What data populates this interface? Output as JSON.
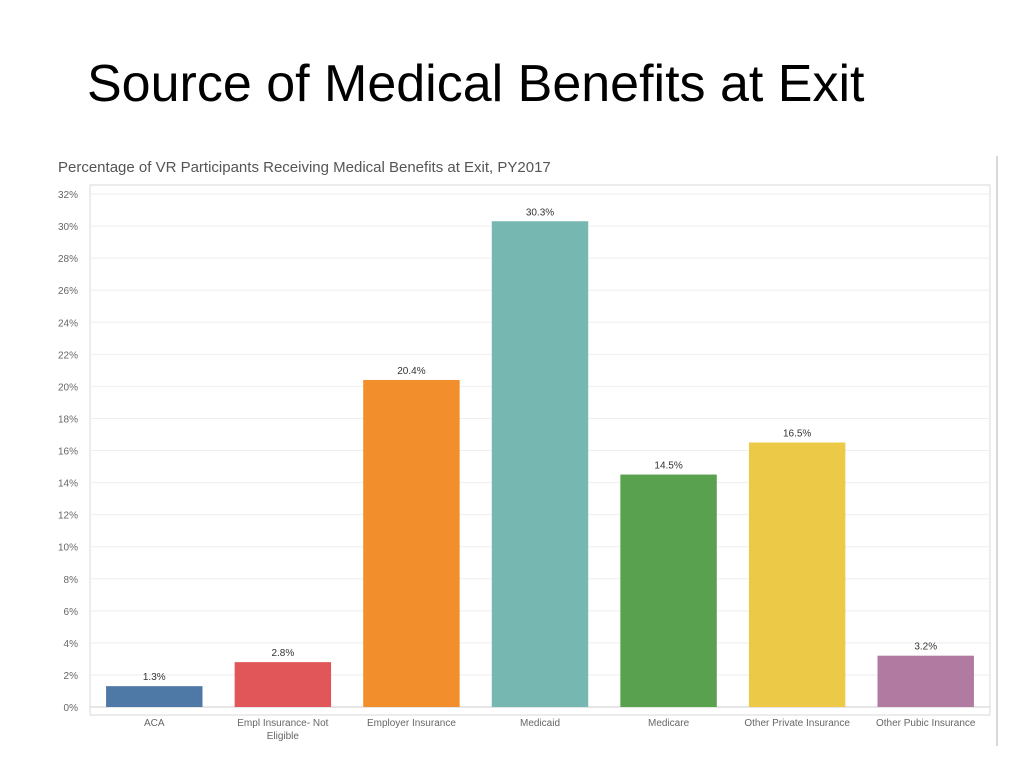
{
  "slide": {
    "title": "Source of Medical Benefits at Exit"
  },
  "chart_data": {
    "type": "bar",
    "title": "Percentage of VR Participants Receiving Medical Benefits at Exit, PY2017",
    "xlabel": "",
    "ylabel": "",
    "ylim": [
      0,
      32
    ],
    "y_ticks": [
      0,
      2,
      4,
      6,
      8,
      10,
      12,
      14,
      16,
      18,
      20,
      22,
      24,
      26,
      28,
      30,
      32
    ],
    "y_tick_suffix": "%",
    "grid": true,
    "legend": "none",
    "categories": [
      "ACA",
      "Empl Insurance- Not Eligible",
      "Employer Insurance",
      "Medicaid",
      "Medicare",
      "Other Private Insurance",
      "Other Pubic Insurance"
    ],
    "category_lines": [
      [
        "ACA"
      ],
      [
        "Empl Insurance- Not",
        "Eligible"
      ],
      [
        "Employer Insurance"
      ],
      [
        "Medicaid"
      ],
      [
        "Medicare"
      ],
      [
        "Other Private Insurance"
      ],
      [
        "Other Pubic Insurance"
      ]
    ],
    "values": [
      1.3,
      2.8,
      20.4,
      30.3,
      14.5,
      16.5,
      3.2
    ],
    "value_labels": [
      "1.3%",
      "2.8%",
      "20.4%",
      "30.3%",
      "14.5%",
      "16.5%",
      "3.2%"
    ],
    "colors": [
      "#4e79a7",
      "#e15759",
      "#f28e2b",
      "#76b7b2",
      "#59a14f",
      "#edc948",
      "#b07aa1"
    ]
  }
}
